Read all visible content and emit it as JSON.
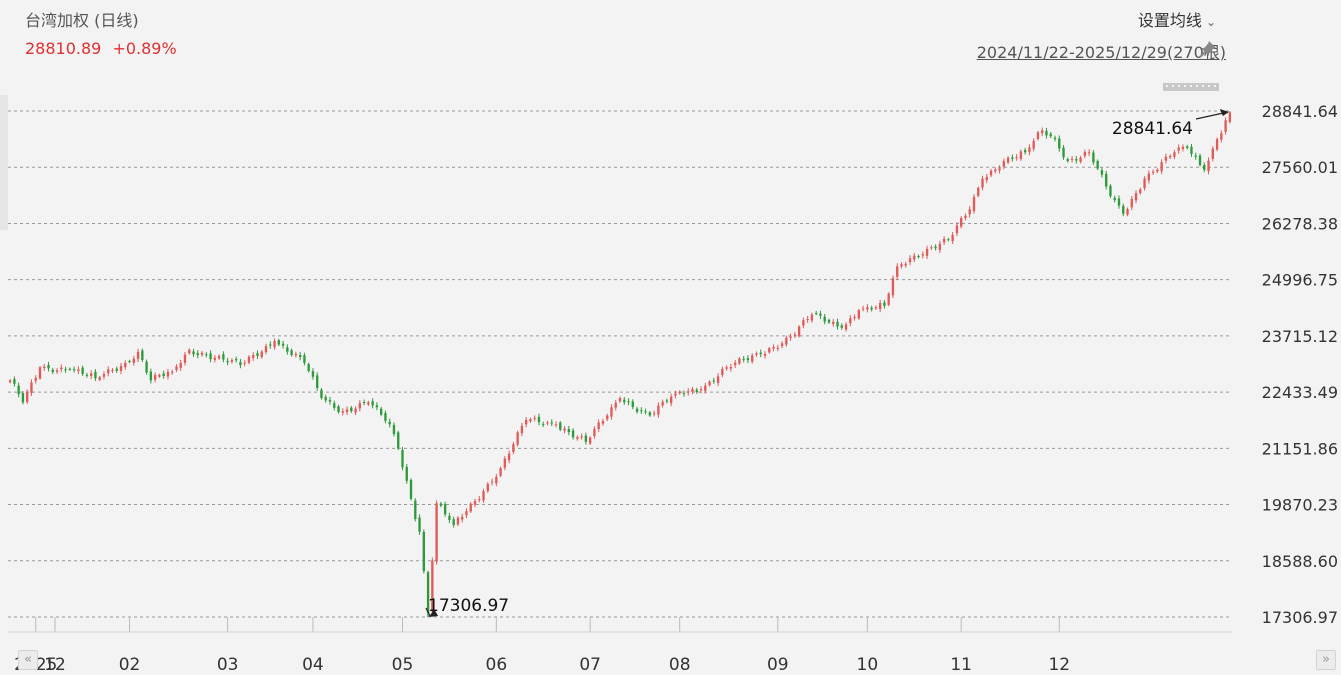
{
  "header": {
    "title": "台湾加权 (日线)",
    "price_text": "28810.89",
    "change_text": "+0.89%",
    "settings_label": "设置均线",
    "date_range": "2024/11/22-2025/12/29(270根)"
  },
  "icons": {
    "pin": "pin-icon",
    "nav_left": "double-chevron-left-icon",
    "nav_right": "double-chevron-right-icon",
    "settings_dropdown": "chevron-down-icon"
  },
  "colors": {
    "up": "#e05a5a",
    "down": "#2e9a3c",
    "price_text": "#e03030",
    "grid": "#999999"
  },
  "chart_data": {
    "type": "candlestick",
    "ylim": [
      17306.97,
      28841.64
    ],
    "ytick_labels": [
      "28841.64",
      "27560.01",
      "26278.38",
      "24996.75",
      "23715.12",
      "22433.49",
      "21151.86",
      "19870.23",
      "18588.60",
      "17306.97"
    ],
    "xtick_labels": [
      "12",
      "2025",
      "02",
      "03",
      "04",
      "05",
      "06",
      "07",
      "08",
      "09",
      "10",
      "11",
      "12"
    ],
    "annotations": {
      "high_label": "28841.64",
      "low_label": "17306.97"
    },
    "anchors": [
      {
        "date": "2024/11/22",
        "close": 22700
      },
      {
        "date": "2024/11/27",
        "close": 22200
      },
      {
        "date": "2024/12/03",
        "close": 23000
      },
      {
        "date": "2024/12/12",
        "close": 22950
      },
      {
        "date": "2024/12/20",
        "close": 22750
      },
      {
        "date": "2024/12/31",
        "close": 23100
      },
      {
        "date": "2025/01/03",
        "close": 23350
      },
      {
        "date": "2025/01/08",
        "close": 22700
      },
      {
        "date": "2025/01/15",
        "close": 22900
      },
      {
        "date": "2025/01/21",
        "close": 23400
      },
      {
        "date": "2025/02/06",
        "close": 23050
      },
      {
        "date": "2025/02/18",
        "close": 23600
      },
      {
        "date": "2025/02/27",
        "close": 23100
      },
      {
        "date": "2025/03/05",
        "close": 22300
      },
      {
        "date": "2025/03/12",
        "close": 22000
      },
      {
        "date": "2025/03/20",
        "close": 22200
      },
      {
        "date": "2025/03/27",
        "close": 21700
      },
      {
        "date": "2025/03/31",
        "close": 21150
      },
      {
        "date": "2025/04/07",
        "close": 19250
      },
      {
        "date": "2025/04/09",
        "close": 17400
      },
      {
        "date": "2025/04/11",
        "close": 19900
      },
      {
        "date": "2025/04/17",
        "close": 19400
      },
      {
        "date": "2025/04/24",
        "close": 19950
      },
      {
        "date": "2025/05/02",
        "close": 20700
      },
      {
        "date": "2025/05/12",
        "close": 21800
      },
      {
        "date": "2025/05/21",
        "close": 21700
      },
      {
        "date": "2025/05/30",
        "close": 21300
      },
      {
        "date": "2025/06/06",
        "close": 21900
      },
      {
        "date": "2025/06/11",
        "close": 22300
      },
      {
        "date": "2025/06/20",
        "close": 21900
      },
      {
        "date": "2025/06/30",
        "close": 22400
      },
      {
        "date": "2025/07/08",
        "close": 22500
      },
      {
        "date": "2025/07/16",
        "close": 23000
      },
      {
        "date": "2025/07/28",
        "close": 23300
      },
      {
        "date": "2025/08/06",
        "close": 23700
      },
      {
        "date": "2025/08/13",
        "close": 24200
      },
      {
        "date": "2025/08/22",
        "close": 23900
      },
      {
        "date": "2025/08/28",
        "close": 24300
      },
      {
        "date": "2025/09/05",
        "close": 24400
      },
      {
        "date": "2025/09/10",
        "close": 25300
      },
      {
        "date": "2025/09/19",
        "close": 25700
      },
      {
        "date": "2025/09/26",
        "close": 25900
      },
      {
        "date": "2025/10/03",
        "close": 26600
      },
      {
        "date": "2025/10/08",
        "close": 27300
      },
      {
        "date": "2025/10/15",
        "close": 27700
      },
      {
        "date": "2025/10/22",
        "close": 27900
      },
      {
        "date": "2025/10/28",
        "close": 28400
      },
      {
        "date": "2025/10/31",
        "close": 28200
      },
      {
        "date": "2025/11/05",
        "close": 27700
      },
      {
        "date": "2025/11/12",
        "close": 27900
      },
      {
        "date": "2025/11/19",
        "close": 26900
      },
      {
        "date": "2025/11/24",
        "close": 26500
      },
      {
        "date": "2025/12/01",
        "close": 27300
      },
      {
        "date": "2025/12/10",
        "close": 27900
      },
      {
        "date": "2025/12/15",
        "close": 28000
      },
      {
        "date": "2025/12/19",
        "close": 27500
      },
      {
        "date": "2025/12/24",
        "close": 28200
      },
      {
        "date": "2025/12/29",
        "close": 28810.89
      }
    ]
  }
}
